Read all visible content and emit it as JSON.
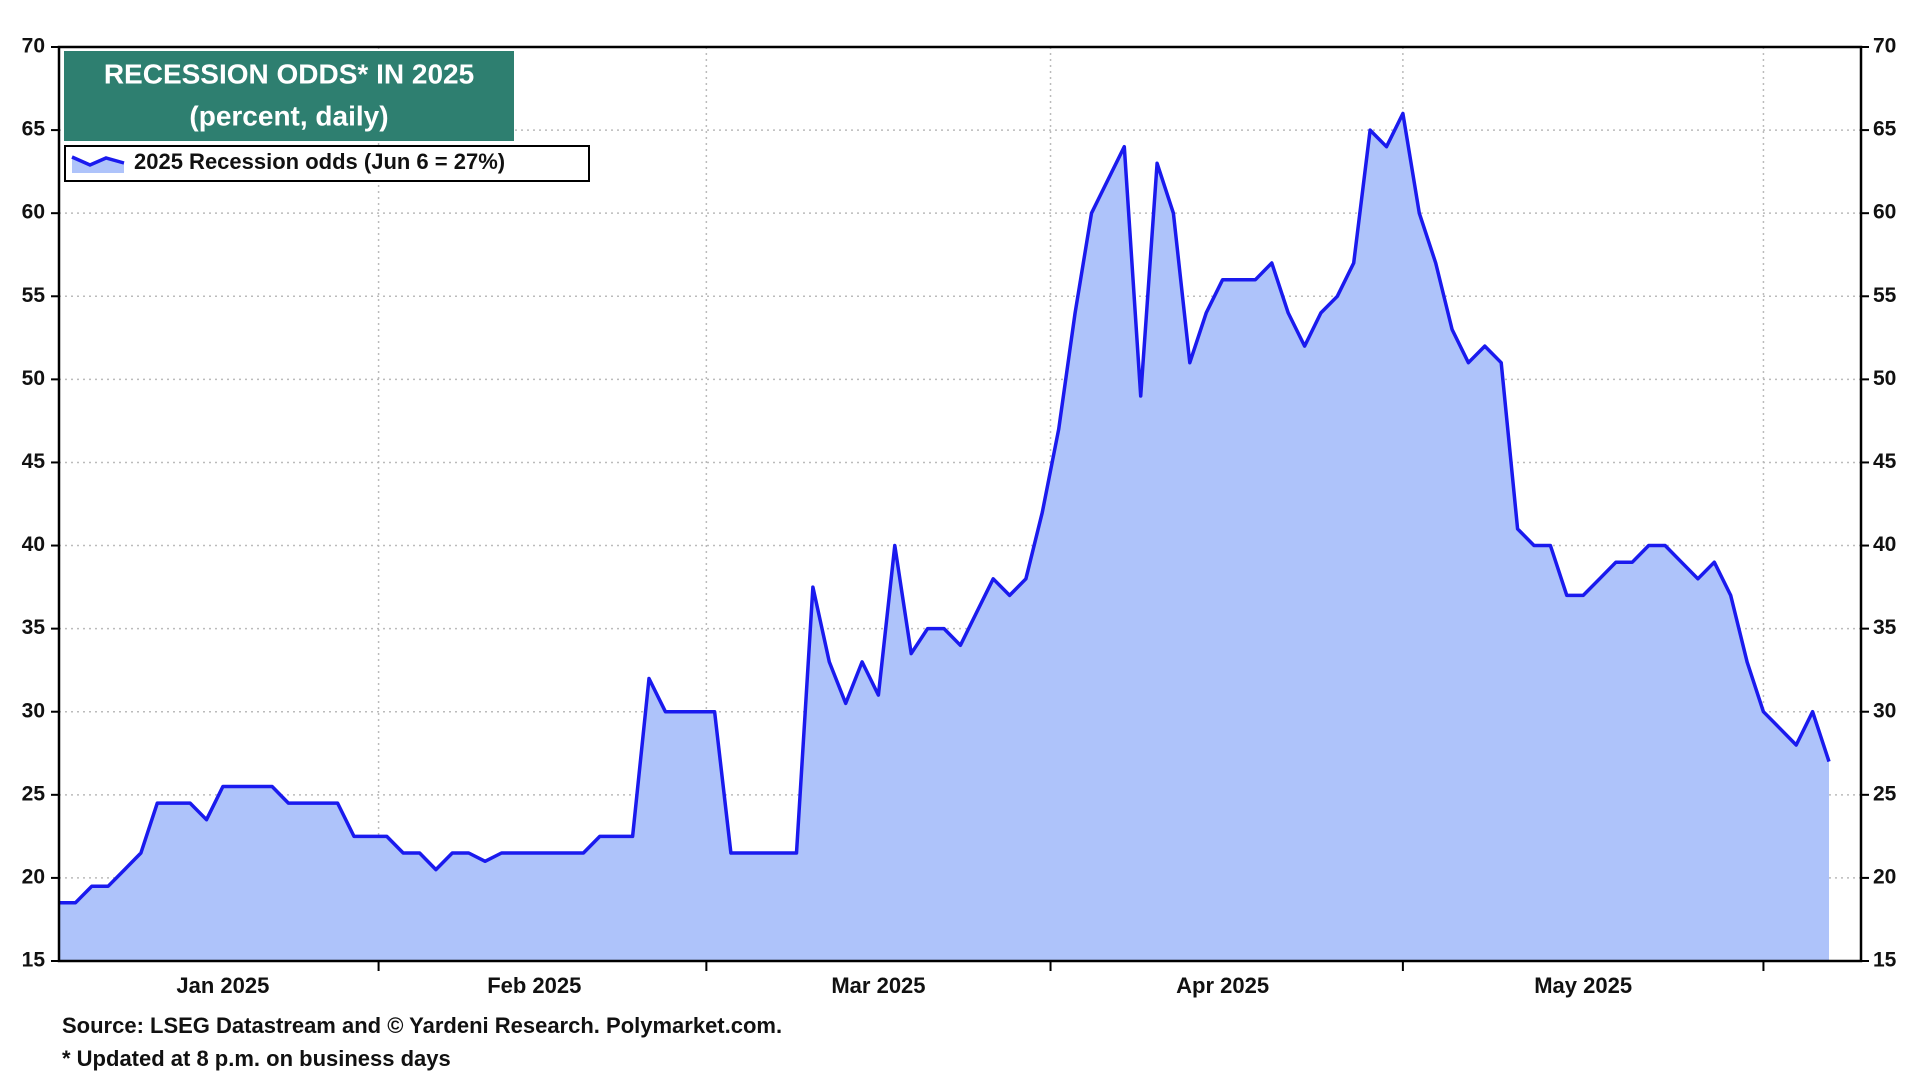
{
  "chart_data": {
    "type": "area",
    "title": "RECESSION ODDS* IN 2025",
    "subtitle": "(percent, daily)",
    "categories": [
      null,
      null,
      null,
      null,
      null,
      null,
      null,
      null,
      null,
      null,
      "Jan 2025",
      null,
      null,
      null,
      null,
      null,
      null,
      null,
      null,
      null,
      null,
      null,
      null,
      null,
      null,
      null,
      null,
      null,
      null,
      "Feb 2025",
      null,
      null,
      null,
      null,
      null,
      null,
      null,
      null,
      null,
      null,
      null,
      null,
      null,
      null,
      null,
      null,
      null,
      null,
      null,
      null,
      "Mar 2025",
      null,
      null,
      null,
      null,
      null,
      null,
      null,
      null,
      null,
      null,
      null,
      null,
      null,
      null,
      null,
      null,
      null,
      null,
      null,
      null,
      "Apr 2025",
      null,
      null,
      null,
      null,
      null,
      null,
      null,
      null,
      null,
      null,
      null,
      null,
      null,
      null,
      null,
      null,
      null,
      null,
      null,
      null,
      null,
      "May 2025",
      null,
      null,
      null,
      null,
      null,
      null,
      null,
      null,
      null,
      null,
      null,
      null,
      null,
      null,
      null
    ],
    "series": [
      {
        "name": "2025 Recession odds (Jun 6 = 27%)",
        "color": "#1a1aee",
        "fill_color": "#aec3fa",
        "values": [
          18.5,
          18.5,
          19.5,
          19.5,
          20.5,
          21.5,
          24.5,
          24.5,
          24.5,
          23.5,
          25.5,
          25.5,
          25.5,
          25.5,
          24.5,
          24.5,
          24.5,
          24.5,
          22.5,
          22.5,
          22.5,
          21.5,
          21.5,
          20.5,
          21.5,
          21.5,
          21,
          21.5,
          21.5,
          21.5,
          21.5,
          21.5,
          21.5,
          22.5,
          22.5,
          22.5,
          32,
          30,
          30,
          30,
          30,
          21.5,
          21.5,
          21.5,
          21.5,
          21.5,
          37.5,
          33,
          30.5,
          33,
          31,
          40,
          33.5,
          35,
          35,
          34,
          36,
          38,
          37,
          38,
          42,
          47,
          54,
          60,
          62,
          64,
          49,
          63,
          60,
          51,
          54,
          56,
          56,
          56,
          57,
          54,
          52,
          54,
          55,
          57,
          65,
          64,
          66,
          60,
          57,
          53,
          51,
          52,
          51,
          41,
          40,
          40,
          37,
          37,
          38,
          39,
          39,
          40,
          40,
          39,
          38,
          39,
          37,
          33,
          30,
          29,
          28,
          30,
          27
        ]
      }
    ],
    "ylim": [
      15,
      70
    ],
    "yticks": [
      15,
      20,
      25,
      30,
      35,
      40,
      45,
      50,
      55,
      60,
      65,
      70
    ],
    "y2lim": [
      15,
      70
    ],
    "y2ticks": [
      15,
      20,
      25,
      30,
      35,
      40,
      45,
      50,
      55,
      60,
      65,
      70
    ],
    "grid": true,
    "legend": "upper left",
    "title_box_color": "#2e7f70",
    "notes": [
      "Source: LSEG Datastream and © Yardeni Research. Polymarket.com.",
      "* Updated at 8 p.m. on business days"
    ]
  }
}
